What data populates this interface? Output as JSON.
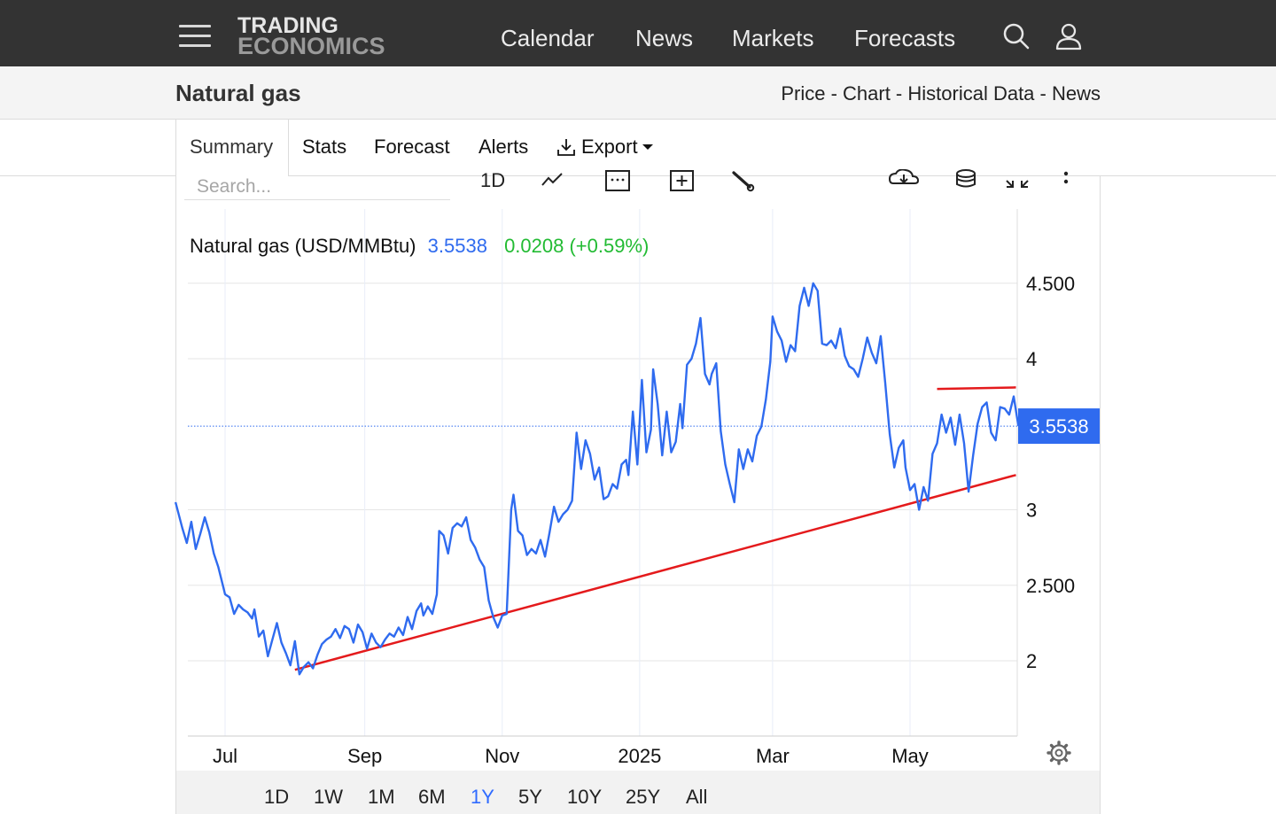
{
  "header": {
    "logo_line1": "TRADING",
    "logo_line2": "ECONOMICS",
    "nav": [
      "Calendar",
      "News",
      "Markets",
      "Forecasts"
    ],
    "icons": [
      "search-icon",
      "user-icon",
      "hamburger-menu-icon"
    ]
  },
  "subheader": {
    "title": "Natural gas",
    "links": [
      "Price",
      "Chart",
      "Historical Data",
      "News"
    ],
    "separator": " - "
  },
  "tabs": {
    "items": [
      "Summary",
      "Stats",
      "Forecast",
      "Alerts"
    ],
    "export_label": "Export",
    "active": "Summary"
  },
  "toolbar": {
    "search_placeholder": "Search...",
    "interval_label": "1D",
    "icons": [
      "line-chart-icon",
      "calendar-icon",
      "add-indicator-icon",
      "draw-tool-icon",
      "download-icon",
      "database-icon",
      "fullscreen-icon",
      "more-icon"
    ]
  },
  "ranges": {
    "items": [
      "1D",
      "1W",
      "1M",
      "6M",
      "1Y",
      "5Y",
      "10Y",
      "25Y",
      "All"
    ],
    "active": "1Y"
  },
  "colors": {
    "line": "#2f6bef",
    "trend": "#e41a1c",
    "price_tag": "#2f6bef",
    "change": "#22bb33",
    "topbar": "#333333"
  },
  "chart_data": {
    "type": "line",
    "legend": {
      "name": "Natural gas (USD/MMBtu)",
      "value": "3.5538",
      "change": "0.0208 (+0.59%)"
    },
    "current_price_label": "3.5538",
    "current_price": 3.5538,
    "y_ticks": [
      {
        "value": 4.5,
        "label": "4.500"
      },
      {
        "value": 4,
        "label": "4"
      },
      {
        "value": 3,
        "label": "3"
      },
      {
        "value": 2.5,
        "label": "2.500"
      },
      {
        "value": 2,
        "label": "2"
      }
    ],
    "y_range": [
      1.5,
      4.7
    ],
    "x_range": [
      "2024-06-09",
      "2025-06-20"
    ],
    "x_ticks": [
      {
        "date": "2024-07-01",
        "label": "Jul"
      },
      {
        "date": "2024-09-01",
        "label": "Sep"
      },
      {
        "date": "2024-11-01",
        "label": "Nov"
      },
      {
        "date": "2025-01-01",
        "label": "2025"
      },
      {
        "date": "2025-03-01",
        "label": "Mar"
      },
      {
        "date": "2025-05-01",
        "label": "May"
      }
    ],
    "grid": true,
    "series": [
      {
        "values": [
          [
            "2024-06-09",
            3.05
          ],
          [
            "2024-06-12",
            2.88
          ],
          [
            "2024-06-14",
            2.78
          ],
          [
            "2024-06-16",
            2.92
          ],
          [
            "2024-06-18",
            2.74
          ],
          [
            "2024-06-20",
            2.84
          ],
          [
            "2024-06-22",
            2.95
          ],
          [
            "2024-06-24",
            2.85
          ],
          [
            "2024-06-26",
            2.71
          ],
          [
            "2024-06-28",
            2.62
          ],
          [
            "2024-06-30",
            2.5
          ],
          [
            "2024-07-01",
            2.44
          ],
          [
            "2024-07-03",
            2.42
          ],
          [
            "2024-07-05",
            2.31
          ],
          [
            "2024-07-07",
            2.37
          ],
          [
            "2024-07-09",
            2.34
          ],
          [
            "2024-07-11",
            2.32
          ],
          [
            "2024-07-13",
            2.28
          ],
          [
            "2024-07-14",
            2.34
          ],
          [
            "2024-07-16",
            2.16
          ],
          [
            "2024-07-18",
            2.2
          ],
          [
            "2024-07-20",
            2.03
          ],
          [
            "2024-07-22",
            2.14
          ],
          [
            "2024-07-24",
            2.25
          ],
          [
            "2024-07-26",
            2.12
          ],
          [
            "2024-07-28",
            2.05
          ],
          [
            "2024-07-30",
            1.97
          ],
          [
            "2024-08-01",
            2.13
          ],
          [
            "2024-08-03",
            1.91
          ],
          [
            "2024-08-05",
            1.96
          ],
          [
            "2024-08-07",
            1.99
          ],
          [
            "2024-08-09",
            1.95
          ],
          [
            "2024-08-11",
            2.04
          ],
          [
            "2024-08-13",
            2.11
          ],
          [
            "2024-08-15",
            2.14
          ],
          [
            "2024-08-17",
            2.16
          ],
          [
            "2024-08-19",
            2.21
          ],
          [
            "2024-08-21",
            2.15
          ],
          [
            "2024-08-23",
            2.23
          ],
          [
            "2024-08-25",
            2.21
          ],
          [
            "2024-08-27",
            2.12
          ],
          [
            "2024-08-29",
            2.24
          ],
          [
            "2024-08-31",
            2.19
          ],
          [
            "2024-09-02",
            2.08
          ],
          [
            "2024-09-04",
            2.18
          ],
          [
            "2024-09-06",
            2.12
          ],
          [
            "2024-09-08",
            2.09
          ],
          [
            "2024-09-10",
            2.14
          ],
          [
            "2024-09-12",
            2.18
          ],
          [
            "2024-09-14",
            2.16
          ],
          [
            "2024-09-16",
            2.22
          ],
          [
            "2024-09-18",
            2.17
          ],
          [
            "2024-09-20",
            2.29
          ],
          [
            "2024-09-22",
            2.21
          ],
          [
            "2024-09-24",
            2.33
          ],
          [
            "2024-09-26",
            2.38
          ],
          [
            "2024-09-27",
            2.3
          ],
          [
            "2024-09-29",
            2.36
          ],
          [
            "2024-10-01",
            2.31
          ],
          [
            "2024-10-03",
            2.44
          ],
          [
            "2024-10-04",
            2.86
          ],
          [
            "2024-10-06",
            2.83
          ],
          [
            "2024-10-08",
            2.71
          ],
          [
            "2024-10-10",
            2.88
          ],
          [
            "2024-10-12",
            2.91
          ],
          [
            "2024-10-14",
            2.89
          ],
          [
            "2024-10-16",
            2.95
          ],
          [
            "2024-10-18",
            2.8
          ],
          [
            "2024-10-20",
            2.75
          ],
          [
            "2024-10-22",
            2.67
          ],
          [
            "2024-10-24",
            2.62
          ],
          [
            "2024-10-26",
            2.4
          ],
          [
            "2024-10-28",
            2.29
          ],
          [
            "2024-10-30",
            2.22
          ],
          [
            "2024-11-01",
            2.3
          ],
          [
            "2024-11-03",
            2.31
          ],
          [
            "2024-11-05",
            3.0
          ],
          [
            "2024-11-06",
            3.1
          ],
          [
            "2024-11-08",
            2.86
          ],
          [
            "2024-11-10",
            2.83
          ],
          [
            "2024-11-12",
            2.7
          ],
          [
            "2024-11-14",
            2.74
          ],
          [
            "2024-11-16",
            2.71
          ],
          [
            "2024-11-18",
            2.8
          ],
          [
            "2024-11-20",
            2.69
          ],
          [
            "2024-11-22",
            2.85
          ],
          [
            "2024-11-24",
            3.02
          ],
          [
            "2024-11-26",
            2.92
          ],
          [
            "2024-11-28",
            2.97
          ],
          [
            "2024-11-30",
            3.0
          ],
          [
            "2024-12-02",
            3.06
          ],
          [
            "2024-12-04",
            3.51
          ],
          [
            "2024-12-06",
            3.27
          ],
          [
            "2024-12-08",
            3.46
          ],
          [
            "2024-12-10",
            3.37
          ],
          [
            "2024-12-12",
            3.2
          ],
          [
            "2024-12-14",
            3.28
          ],
          [
            "2024-12-16",
            3.07
          ],
          [
            "2024-12-18",
            3.09
          ],
          [
            "2024-12-20",
            3.17
          ],
          [
            "2024-12-22",
            3.14
          ],
          [
            "2024-12-24",
            3.3
          ],
          [
            "2024-12-26",
            3.33
          ],
          [
            "2024-12-27",
            3.23
          ],
          [
            "2024-12-29",
            3.65
          ],
          [
            "2024-12-31",
            3.3
          ],
          [
            "2025-01-02",
            3.86
          ],
          [
            "2025-01-04",
            3.38
          ],
          [
            "2025-01-06",
            3.53
          ],
          [
            "2025-01-07",
            3.93
          ],
          [
            "2025-01-09",
            3.7
          ],
          [
            "2025-01-11",
            3.36
          ],
          [
            "2025-01-13",
            3.65
          ],
          [
            "2025-01-15",
            3.38
          ],
          [
            "2025-01-17",
            3.45
          ],
          [
            "2025-01-19",
            3.7
          ],
          [
            "2025-01-20",
            3.54
          ],
          [
            "2025-01-22",
            3.96
          ],
          [
            "2025-01-24",
            4.0
          ],
          [
            "2025-01-26",
            4.1
          ],
          [
            "2025-01-28",
            4.27
          ],
          [
            "2025-01-30",
            3.9
          ],
          [
            "2025-02-01",
            3.83
          ],
          [
            "2025-02-02",
            3.9
          ],
          [
            "2025-02-04",
            3.97
          ],
          [
            "2025-02-06",
            3.52
          ],
          [
            "2025-02-08",
            3.3
          ],
          [
            "2025-02-10",
            3.17
          ],
          [
            "2025-02-12",
            3.05
          ],
          [
            "2025-02-14",
            3.4
          ],
          [
            "2025-02-16",
            3.27
          ],
          [
            "2025-02-18",
            3.4
          ],
          [
            "2025-02-20",
            3.32
          ],
          [
            "2025-02-22",
            3.49
          ],
          [
            "2025-02-24",
            3.55
          ],
          [
            "2025-02-26",
            3.73
          ],
          [
            "2025-02-28",
            3.98
          ],
          [
            "2025-03-01",
            4.28
          ],
          [
            "2025-03-03",
            4.18
          ],
          [
            "2025-03-05",
            4.12
          ],
          [
            "2025-03-07",
            3.98
          ],
          [
            "2025-03-09",
            4.09
          ],
          [
            "2025-03-11",
            4.05
          ],
          [
            "2025-03-13",
            4.35
          ],
          [
            "2025-03-15",
            4.47
          ],
          [
            "2025-03-17",
            4.35
          ],
          [
            "2025-03-19",
            4.5
          ],
          [
            "2025-03-21",
            4.45
          ],
          [
            "2025-03-23",
            4.1
          ],
          [
            "2025-03-25",
            4.09
          ],
          [
            "2025-03-27",
            4.12
          ],
          [
            "2025-03-29",
            4.07
          ],
          [
            "2025-03-31",
            4.2
          ],
          [
            "2025-04-02",
            4.02
          ],
          [
            "2025-04-04",
            3.95
          ],
          [
            "2025-04-06",
            3.93
          ],
          [
            "2025-04-08",
            3.88
          ],
          [
            "2025-04-10",
            4.0
          ],
          [
            "2025-04-12",
            4.14
          ],
          [
            "2025-04-14",
            4.04
          ],
          [
            "2025-04-16",
            3.97
          ],
          [
            "2025-04-18",
            4.15
          ],
          [
            "2025-04-20",
            3.84
          ],
          [
            "2025-04-22",
            3.5
          ],
          [
            "2025-04-24",
            3.28
          ],
          [
            "2025-04-26",
            3.41
          ],
          [
            "2025-04-28",
            3.46
          ],
          [
            "2025-04-29",
            3.28
          ],
          [
            "2025-05-01",
            3.13
          ],
          [
            "2025-05-03",
            3.17
          ],
          [
            "2025-05-05",
            3.0
          ],
          [
            "2025-05-07",
            3.15
          ],
          [
            "2025-05-09",
            3.06
          ],
          [
            "2025-05-11",
            3.37
          ],
          [
            "2025-05-13",
            3.44
          ],
          [
            "2025-05-15",
            3.63
          ],
          [
            "2025-05-17",
            3.51
          ],
          [
            "2025-05-19",
            3.61
          ],
          [
            "2025-05-21",
            3.43
          ],
          [
            "2025-05-23",
            3.63
          ],
          [
            "2025-05-25",
            3.44
          ],
          [
            "2025-05-27",
            3.12
          ],
          [
            "2025-05-29",
            3.36
          ],
          [
            "2025-05-31",
            3.57
          ],
          [
            "2025-06-02",
            3.68
          ],
          [
            "2025-06-04",
            3.71
          ],
          [
            "2025-06-06",
            3.51
          ],
          [
            "2025-06-08",
            3.46
          ],
          [
            "2025-06-10",
            3.68
          ],
          [
            "2025-06-12",
            3.67
          ],
          [
            "2025-06-14",
            3.63
          ],
          [
            "2025-06-16",
            3.75
          ],
          [
            "2025-06-18",
            3.56
          ],
          [
            "2025-06-20",
            3.5538
          ]
        ]
      }
    ],
    "trendlines": [
      {
        "from": [
          "2024-08-01",
          1.94
        ],
        "to": [
          "2025-06-17",
          3.23
        ]
      },
      {
        "from": [
          "2025-05-13",
          3.8
        ],
        "to": [
          "2025-06-17",
          3.81
        ]
      }
    ]
  }
}
